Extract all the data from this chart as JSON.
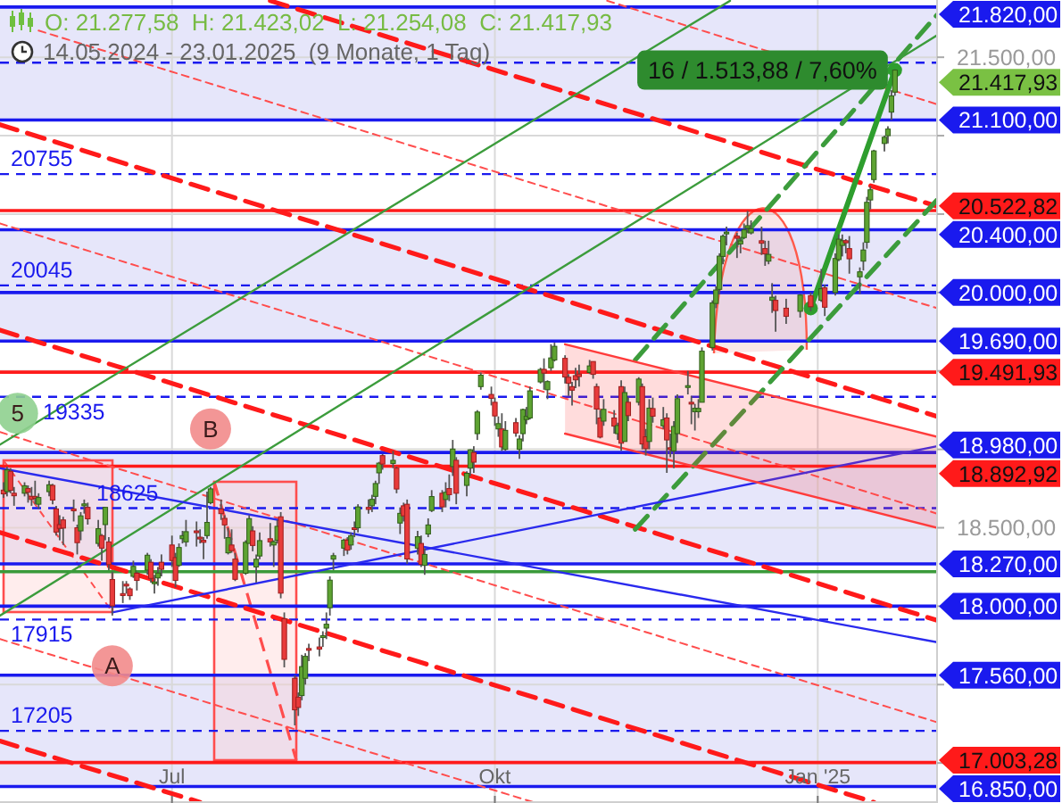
{
  "chart_data": {
    "type": "candlestick",
    "title": "O: 21.277,58  H: 21.423,02  L: 21.254,08  C: 21.417,93",
    "subtitle": "14.05.2024 - 23.01.2025  (9 Monate, 1 Tag)",
    "x": [
      "2024-05-14",
      "2024-05-15",
      "2024-05-16",
      "2024-05-17",
      "2024-05-20",
      "2024-05-21",
      "2024-05-22",
      "2024-05-23",
      "2024-05-24",
      "2024-05-27",
      "2024-05-28",
      "2024-05-29",
      "2024-05-30",
      "2024-05-31",
      "2024-06-03",
      "2024-06-04",
      "2024-06-05",
      "2024-06-06",
      "2024-06-07",
      "2024-06-10",
      "2024-06-11",
      "2024-06-12",
      "2024-06-13",
      "2024-06-14",
      "2024-06-17",
      "2024-06-18",
      "2024-06-19",
      "2024-06-20",
      "2024-06-21",
      "2024-06-24",
      "2024-06-25",
      "2024-06-26",
      "2024-06-27",
      "2024-06-28",
      "2024-07-01",
      "2024-07-02",
      "2024-07-03",
      "2024-07-04",
      "2024-07-05",
      "2024-07-08",
      "2024-07-09",
      "2024-07-10",
      "2024-07-11",
      "2024-07-12",
      "2024-07-15",
      "2024-07-16",
      "2024-07-17",
      "2024-07-18",
      "2024-07-19",
      "2024-07-22",
      "2024-07-23",
      "2024-07-24",
      "2024-07-25",
      "2024-07-26",
      "2024-07-29",
      "2024-07-30",
      "2024-07-31",
      "2024-08-01",
      "2024-08-02",
      "2024-08-05",
      "2024-08-06",
      "2024-08-07",
      "2024-08-08",
      "2024-08-09",
      "2024-08-12",
      "2024-08-13",
      "2024-08-14",
      "2024-08-15",
      "2024-08-16",
      "2024-08-19",
      "2024-08-20",
      "2024-08-21",
      "2024-08-22",
      "2024-08-23",
      "2024-08-26",
      "2024-08-27",
      "2024-08-28",
      "2024-08-29",
      "2024-08-30",
      "2024-09-02",
      "2024-09-03",
      "2024-09-04",
      "2024-09-05",
      "2024-09-06",
      "2024-09-09",
      "2024-09-10",
      "2024-09-11",
      "2024-09-12",
      "2024-09-13",
      "2024-09-16",
      "2024-09-17",
      "2024-09-18",
      "2024-09-19",
      "2024-09-20",
      "2024-09-23",
      "2024-09-24",
      "2024-09-25",
      "2024-09-26",
      "2024-09-27",
      "2024-09-30",
      "2024-10-01",
      "2024-10-02",
      "2024-10-03",
      "2024-10-04",
      "2024-10-07",
      "2024-10-08",
      "2024-10-09",
      "2024-10-10",
      "2024-10-11",
      "2024-10-14",
      "2024-10-15",
      "2024-10-16",
      "2024-10-17",
      "2024-10-18",
      "2024-10-21",
      "2024-10-22",
      "2024-10-23",
      "2024-10-24",
      "2024-10-25",
      "2024-10-28",
      "2024-10-29",
      "2024-10-30",
      "2024-10-31",
      "2024-11-01",
      "2024-11-04",
      "2024-11-05",
      "2024-11-06",
      "2024-11-07",
      "2024-11-08",
      "2024-11-11",
      "2024-11-12",
      "2024-11-13",
      "2024-11-14",
      "2024-11-15",
      "2024-11-18",
      "2024-11-19",
      "2024-11-20",
      "2024-11-21",
      "2024-11-22",
      "2024-11-25",
      "2024-11-26",
      "2024-11-27",
      "2024-11-28",
      "2024-11-29",
      "2024-12-02",
      "2024-12-03",
      "2024-12-04",
      "2024-12-05",
      "2024-12-06",
      "2024-12-09",
      "2024-12-10",
      "2024-12-11",
      "2024-12-12",
      "2024-12-13",
      "2024-12-16",
      "2024-12-17",
      "2024-12-18",
      "2024-12-19",
      "2024-12-20",
      "2024-12-23",
      "2024-12-27",
      "2024-12-30",
      "2025-01-02",
      "2025-01-03",
      "2025-01-06",
      "2025-01-07",
      "2025-01-08",
      "2025-01-09",
      "2025-01-10",
      "2025-01-13",
      "2025-01-14",
      "2025-01-15",
      "2025-01-16",
      "2025-01-17",
      "2025-01-20",
      "2025-01-21",
      "2025-01-22",
      "2025-01-23"
    ],
    "ohlc": [
      [
        18740,
        18790,
        18690,
        18716
      ],
      [
        18730,
        18890,
        18700,
        18869
      ],
      [
        18860,
        18880,
        18720,
        18738
      ],
      [
        18720,
        18760,
        18640,
        18704
      ],
      [
        18720,
        18790,
        18700,
        18768
      ],
      [
        18750,
        18770,
        18660,
        18726
      ],
      [
        18700,
        18760,
        18640,
        18680
      ],
      [
        18700,
        18800,
        18650,
        18691
      ],
      [
        18650,
        18720,
        18620,
        18693
      ],
      [
        18730,
        18800,
        18700,
        18774
      ],
      [
        18770,
        18780,
        18650,
        18677
      ],
      [
        18620,
        18640,
        18450,
        18473
      ],
      [
        18520,
        18580,
        18420,
        18496
      ],
      [
        18550,
        18570,
        18390,
        18498
      ],
      [
        18620,
        18680,
        18540,
        18608
      ],
      [
        18500,
        18520,
        18330,
        18405
      ],
      [
        18480,
        18600,
        18420,
        18576
      ],
      [
        18640,
        18680,
        18590,
        18652
      ],
      [
        18630,
        18660,
        18520,
        18557
      ],
      [
        18400,
        18550,
        18380,
        18494
      ],
      [
        18450,
        18460,
        18290,
        18370
      ],
      [
        18520,
        18630,
        18420,
        18630
      ],
      [
        18410,
        18440,
        18230,
        18265
      ],
      [
        18170,
        18220,
        17940,
        18002
      ],
      [
        18080,
        18160,
        18020,
        18068
      ],
      [
        18140,
        18160,
        18080,
        18131
      ],
      [
        18110,
        18120,
        18040,
        18067
      ],
      [
        18190,
        18290,
        18180,
        18254
      ],
      [
        18210,
        18220,
        18100,
        18164
      ],
      [
        18230,
        18340,
        18200,
        18325
      ],
      [
        18280,
        18300,
        18150,
        18177
      ],
      [
        18150,
        18200,
        18080,
        18155
      ],
      [
        18180,
        18250,
        18130,
        18211
      ],
      [
        18280,
        18330,
        18190,
        18235
      ],
      [
        18390,
        18450,
        18250,
        18291
      ],
      [
        18310,
        18340,
        18120,
        18164
      ],
      [
        18260,
        18400,
        18250,
        18374
      ],
      [
        18430,
        18480,
        18400,
        18450
      ],
      [
        18410,
        18550,
        18380,
        18475
      ],
      [
        18480,
        18540,
        18380,
        18472
      ],
      [
        18440,
        18490,
        18400,
        18429
      ],
      [
        18420,
        18440,
        18300,
        18407
      ],
      [
        18450,
        18730,
        18430,
        18534
      ],
      [
        18660,
        18760,
        18650,
        18748
      ],
      [
        18620,
        18680,
        18550,
        18590
      ],
      [
        18560,
        18580,
        18430,
        18518
      ],
      [
        18340,
        18500,
        18330,
        18437
      ],
      [
        18390,
        18490,
        18340,
        18354
      ],
      [
        18300,
        18340,
        18160,
        18171
      ],
      [
        18210,
        18420,
        18200,
        18407
      ],
      [
        18400,
        18580,
        18400,
        18558
      ],
      [
        18480,
        18510,
        18350,
        18387
      ],
      [
        18250,
        18330,
        18150,
        18299
      ],
      [
        18320,
        18470,
        18300,
        18418
      ],
      [
        18430,
        18530,
        18380,
        18410
      ],
      [
        18390,
        18420,
        18250,
        18411
      ],
      [
        18420,
        18550,
        18400,
        18509
      ],
      [
        18570,
        18600,
        18050,
        18083
      ],
      [
        17920,
        17960,
        17610,
        17661
      ],
      [
        17540,
        17560,
        17240,
        17339
      ],
      [
        17420,
        17450,
        17300,
        17354
      ],
      [
        17430,
        17690,
        17400,
        17615
      ],
      [
        17540,
        17700,
        17500,
        17680
      ],
      [
        17730,
        17760,
        17650,
        17722
      ],
      [
        17740,
        17800,
        17680,
        17726
      ],
      [
        17800,
        17840,
        17740,
        17812
      ],
      [
        17860,
        17960,
        17790,
        17885
      ],
      [
        17990,
        18190,
        17940,
        18166
      ],
      [
        18300,
        18340,
        18230,
        18322
      ],
      [
        18370,
        18430,
        18320,
        18421
      ],
      [
        18420,
        18440,
        18330,
        18357
      ],
      [
        18390,
        18470,
        18360,
        18449
      ],
      [
        18500,
        18540,
        18440,
        18493
      ],
      [
        18500,
        18650,
        18470,
        18633
      ],
      [
        18630,
        18680,
        18590,
        18617
      ],
      [
        18640,
        18710,
        18600,
        18681
      ],
      [
        18700,
        18800,
        18650,
        18782
      ],
      [
        18850,
        18920,
        18780,
        18912
      ],
      [
        18960,
        18970,
        18870,
        18906
      ],
      [
        18910,
        18990,
        18880,
        18930
      ],
      [
        18880,
        18890,
        18720,
        18747
      ],
      [
        18530,
        18630,
        18460,
        18592
      ],
      [
        18640,
        18660,
        18540,
        18576
      ],
      [
        18650,
        18680,
        18270,
        18301
      ],
      [
        18370,
        18480,
        18330,
        18443
      ],
      [
        18400,
        18450,
        18250,
        18266
      ],
      [
        18260,
        18370,
        18200,
        18330
      ],
      [
        18460,
        18560,
        18440,
        18518
      ],
      [
        18610,
        18740,
        18600,
        18699
      ],
      [
        18720,
        18740,
        18600,
        18633
      ],
      [
        18680,
        18790,
        18630,
        18726
      ],
      [
        18750,
        18840,
        18670,
        18711
      ],
      [
        18890,
        19060,
        18830,
        19002
      ],
      [
        18930,
        18950,
        18650,
        18720
      ],
      [
        18770,
        18860,
        18700,
        18847
      ],
      [
        18880,
        19000,
        18830,
        18997
      ],
      [
        18980,
        19020,
        18850,
        18918
      ],
      [
        19100,
        19250,
        19060,
        19238
      ],
      [
        19400,
        19490,
        19380,
        19473
      ],
      [
        19350,
        19400,
        19280,
        19325
      ],
      [
        19300,
        19330,
        19150,
        19213
      ],
      [
        19130,
        19210,
        19080,
        19164
      ],
      [
        19130,
        19230,
        18990,
        19015
      ],
      [
        19000,
        19180,
        18990,
        19121
      ],
      [
        19170,
        19200,
        19080,
        19104
      ],
      [
        19000,
        19090,
        18940,
        19066
      ],
      [
        19100,
        19260,
        19050,
        19254
      ],
      [
        19190,
        19270,
        19160,
        19210
      ],
      [
        19200,
        19400,
        19190,
        19373
      ],
      [
        19430,
        19520,
        19420,
        19509
      ],
      [
        19510,
        19580,
        19380,
        19486
      ],
      [
        19380,
        19440,
        19320,
        19432
      ],
      [
        19520,
        19670,
        19500,
        19583
      ],
      [
        19570,
        19680,
        19560,
        19657
      ],
      [
        19580,
        19600,
        19420,
        19461
      ],
      [
        19460,
        19480,
        19340,
        19421
      ],
      [
        19400,
        19430,
        19280,
        19377
      ],
      [
        19470,
        19520,
        19390,
        19443
      ],
      [
        19480,
        19540,
        19400,
        19464
      ],
      [
        19490,
        19570,
        19480,
        19532
      ],
      [
        19560,
        19560,
        19450,
        19478
      ],
      [
        19400,
        19420,
        19160,
        19257
      ],
      [
        19200,
        19250,
        19070,
        19078
      ],
      [
        19180,
        19320,
        19150,
        19255
      ],
      [
        19200,
        19250,
        19100,
        19148
      ],
      [
        19100,
        19170,
        19060,
        19152
      ],
      [
        19400,
        19440,
        18990,
        19039
      ],
      [
        19050,
        19400,
        19050,
        19362
      ],
      [
        19300,
        19330,
        19180,
        19215
      ],
      [
        19300,
        19460,
        19280,
        19448
      ],
      [
        19400,
        19420,
        19000,
        19034
      ],
      [
        19080,
        19130,
        18960,
        19004
      ],
      [
        19050,
        19320,
        19000,
        19263
      ],
      [
        19260,
        19330,
        19170,
        19211
      ],
      [
        19150,
        19270,
        19130,
        19189
      ],
      [
        19200,
        19230,
        18850,
        19060
      ],
      [
        19010,
        19100,
        18950,
        19004
      ],
      [
        18990,
        19180,
        18880,
        19146
      ],
      [
        19100,
        19350,
        19040,
        19323
      ],
      [
        19400,
        19500,
        19350,
        19406
      ],
      [
        19300,
        19340,
        19160,
        19295
      ],
      [
        19240,
        19290,
        19120,
        19262
      ],
      [
        19240,
        19320,
        19200,
        19261
      ],
      [
        19300,
        19650,
        19300,
        19626
      ],
      [
        19650,
        19950,
        19630,
        19934
      ],
      [
        19930,
        20040,
        19900,
        20016
      ],
      [
        20020,
        20250,
        19990,
        20232
      ],
      [
        20230,
        20370,
        20180,
        20359
      ],
      [
        20380,
        20420,
        20300,
        20385
      ],
      [
        20360,
        20380,
        20220,
        20346
      ],
      [
        20310,
        20350,
        20250,
        20329
      ],
      [
        20350,
        20440,
        20340,
        20399
      ],
      [
        20410,
        20520,
        20380,
        20426
      ],
      [
        20380,
        20460,
        20370,
        20406
      ],
      [
        20330,
        20420,
        20240,
        20314
      ],
      [
        20280,
        20330,
        20170,
        20246
      ],
      [
        20200,
        20330,
        20180,
        20243
      ],
      [
        19950,
        20060,
        19870,
        19970
      ],
      [
        19950,
        19980,
        19750,
        19885
      ],
      [
        19900,
        19960,
        19800,
        19848
      ],
      [
        19880,
        19990,
        19840,
        19984
      ],
      [
        19980,
        20000,
        19880,
        19909
      ],
      [
        19950,
        20150,
        19940,
        20024
      ],
      [
        20030,
        20050,
        19850,
        19906
      ],
      [
        20000,
        20250,
        19980,
        20217
      ],
      [
        20210,
        20370,
        20200,
        20340
      ],
      [
        20300,
        20370,
        20230,
        20330
      ],
      [
        20330,
        20340,
        20250,
        20317
      ],
      [
        20280,
        20360,
        20120,
        20215
      ],
      [
        20100,
        20160,
        19990,
        20132
      ],
      [
        20200,
        20320,
        20140,
        20271
      ],
      [
        20320,
        20610,
        20280,
        20575
      ],
      [
        20590,
        20680,
        20530,
        20655
      ],
      [
        20720,
        20910,
        20700,
        20903
      ],
      [
        20950,
        21000,
        20900,
        20990
      ],
      [
        21000,
        21060,
        20950,
        21042
      ],
      [
        21150,
        21290,
        21100,
        21254
      ],
      [
        21277.58,
        21423.02,
        21254.08,
        21417.93
      ]
    ],
    "xlim": [
      "2024-05-13",
      "2025-02-04"
    ],
    "xticks": [
      {
        "value": "2024-07-01",
        "label": "Jul"
      },
      {
        "value": "2024-10-01",
        "label": "Okt"
      },
      {
        "value": "2025-01-01",
        "label": "Jan '25"
      }
    ],
    "ylim": [
      16745,
      21865
    ],
    "yticks": [
      {
        "value": 17000,
        "label": null
      },
      {
        "value": 17500,
        "label": null
      },
      {
        "value": 18000,
        "label": null
      },
      {
        "value": 18500,
        "label": "18.500,00"
      },
      {
        "value": 19000,
        "label": null
      },
      {
        "value": 19500,
        "label": null
      },
      {
        "value": 20000,
        "label": null
      },
      {
        "value": 20500,
        "label": null
      },
      {
        "value": 21000,
        "label": null
      },
      {
        "value": 21500,
        "label": "21.500,00"
      }
    ],
    "grid": true,
    "bands": [
      {
        "axis": "y",
        "from": 21100,
        "to": 21820,
        "color": "#e6e6fa"
      },
      {
        "axis": "y",
        "from": 19690,
        "to": 20400,
        "color": "#e6e6fa"
      },
      {
        "axis": "y",
        "from": 18270,
        "to": 18980,
        "color": "#e6e6fa"
      },
      {
        "axis": "y",
        "from": 16850,
        "to": 17560,
        "color": "#e6e6fa"
      }
    ],
    "ref_lines": [
      {
        "axis": "y",
        "value": 21820,
        "label": "21.820,00",
        "color": "#1a1aee",
        "line_style": "solid"
      },
      {
        "axis": "y",
        "value": 21100,
        "label": "21.100,00",
        "color": "#1a1aee",
        "line_style": "solid"
      },
      {
        "axis": "y",
        "value": 20522.82,
        "label": "20.522,82",
        "color": "#ff1a1a",
        "line_style": "solid"
      },
      {
        "axis": "y",
        "value": 20400,
        "label": "20.400,00",
        "color": "#1a1aee",
        "line_style": "solid"
      },
      {
        "axis": "y",
        "value": 20000,
        "label": "20.000,00",
        "color": "#1a1aee",
        "line_style": "solid"
      },
      {
        "axis": "y",
        "value": 19690,
        "label": "19.690,00",
        "color": "#1a1aee",
        "line_style": "solid"
      },
      {
        "axis": "y",
        "value": 19491.93,
        "label": "19.491,93",
        "color": "#ff1a1a",
        "line_style": "solid"
      },
      {
        "axis": "y",
        "value": 18980,
        "label": "18.980,00",
        "color": "#1a1aee",
        "line_style": "solid"
      },
      {
        "axis": "y",
        "value": 18892.92,
        "label": "18.892,92",
        "color": "#ff1a1a",
        "line_style": "solid"
      },
      {
        "axis": "y",
        "value": 18270,
        "label": "18.270,00",
        "color": "#1a1aee",
        "line_style": "solid"
      },
      {
        "axis": "y",
        "value": 18220,
        "label": null,
        "color": "#3a9a3a",
        "line_style": "solid"
      },
      {
        "axis": "y",
        "value": 18000,
        "label": "18.000,00",
        "color": "#1a1aee",
        "line_style": "solid"
      },
      {
        "axis": "y",
        "value": 17560,
        "label": "17.560,00",
        "color": "#1a1aee",
        "line_style": "solid"
      },
      {
        "axis": "y",
        "value": 17003.28,
        "label": "17.003,28",
        "color": "#ff1a1a",
        "line_style": "solid"
      },
      {
        "axis": "y",
        "value": 16850,
        "label": "16.850,00",
        "color": "#1a1aee",
        "line_style": "solid"
      },
      {
        "axis": "y",
        "value": 21465,
        "label": null,
        "color": "#1a1aee",
        "line_style": "dashed"
      },
      {
        "axis": "y",
        "value": 20755,
        "label": "20755",
        "color": "#1a1aee",
        "line_style": "dashed"
      },
      {
        "axis": "y",
        "value": 20045,
        "label": "20045",
        "color": "#1a1aee",
        "line_style": "dashed"
      },
      {
        "axis": "y",
        "value": 19335,
        "label": "19335",
        "color": "#1a1aee",
        "line_style": "dashed"
      },
      {
        "axis": "y",
        "value": 18625,
        "label": "18625",
        "color": "#1a1aee",
        "line_style": "dashed"
      },
      {
        "axis": "y",
        "value": 17915,
        "label": "17915",
        "color": "#1a1aee",
        "line_style": "dashed"
      },
      {
        "axis": "y",
        "value": 17205,
        "label": "17205",
        "color": "#1a1aee",
        "line_style": "dashed"
      }
    ],
    "series": [
      {
        "type": "line",
        "color": "#ff1a1a",
        "line_style": "dashed",
        "x": [
          "2024-07-29",
          "2025-02-04"
        ],
        "values": [
          21860,
          20550
        ]
      },
      {
        "type": "line",
        "color": "#ff1a1a",
        "line_style": "dashed",
        "x": [
          "2024-05-13",
          "2025-02-04"
        ],
        "values": [
          21070,
          19210
        ]
      },
      {
        "type": "line",
        "color": "#ff1a1a",
        "line_style": "dashed",
        "x": [
          "2024-05-13",
          "2025-02-04"
        ],
        "values": [
          19760,
          17910
        ]
      },
      {
        "type": "line",
        "color": "#ff1a1a",
        "line_style": "dashed",
        "x": [
          "2024-05-13",
          "2025-01-17"
        ],
        "values": [
          18470,
          16750
        ]
      },
      {
        "type": "line",
        "color": "#ff1a1a",
        "line_style": "dashed",
        "x": [
          "2024-05-13",
          "2024-07-09"
        ],
        "values": [
          17140,
          16750
        ]
      },
      {
        "type": "line",
        "color": "#ff4d4d",
        "line_style": "dotted",
        "x": [
          "2024-11-02",
          "2025-02-04"
        ],
        "values": [
          21860,
          21200
        ]
      },
      {
        "type": "line",
        "color": "#ff4d4d",
        "line_style": "dotted",
        "x": [
          "2024-05-24",
          "2025-02-04"
        ],
        "values": [
          21670,
          19900
        ]
      },
      {
        "type": "line",
        "color": "#ff4d4d",
        "line_style": "dotted",
        "x": [
          "2024-05-13",
          "2025-02-04"
        ],
        "values": [
          20440,
          18590
        ]
      },
      {
        "type": "line",
        "color": "#ff4d4d",
        "line_style": "dotted",
        "x": [
          "2024-05-13",
          "2025-02-04"
        ],
        "values": [
          19110,
          17260
        ]
      },
      {
        "type": "line",
        "color": "#ff4d4d",
        "line_style": "dotted",
        "x": [
          "2024-05-13",
          "2024-10-12"
        ],
        "values": [
          17790,
          16750
        ]
      },
      {
        "type": "line",
        "color": "#3c9c3c",
        "line_style": "solid",
        "x": [
          "2024-05-13",
          "2024-12-07"
        ],
        "values": [
          19030,
          21860
        ]
      },
      {
        "type": "line",
        "color": "#3c9c3c",
        "line_style": "solid",
        "x": [
          "2024-05-13",
          "2025-02-04"
        ],
        "values": [
          17940,
          21640
        ]
      },
      {
        "type": "line",
        "color": "#3c9c3c",
        "line_style": "dashed",
        "x": [
          "2024-11-10",
          "2025-02-04"
        ],
        "values": [
          19570,
          21770
        ]
      },
      {
        "type": "line",
        "color": "#3c9c3c",
        "line_style": "dashed",
        "x": [
          "2024-11-10",
          "2025-02-04"
        ],
        "values": [
          18490,
          20590
        ]
      },
      {
        "type": "line",
        "color": "#2a2aee",
        "line_style": "solid",
        "x": [
          "2024-05-13",
          "2025-02-04"
        ],
        "values": [
          18880,
          17770
        ]
      },
      {
        "type": "line",
        "color": "#2a2aee",
        "line_style": "solid",
        "x": [
          "2024-06-14",
          "2025-02-04"
        ],
        "values": [
          17960,
          19020
        ]
      },
      {
        "type": "line",
        "color": "#ff3b3b",
        "line_style": "solid",
        "x": [
          "2024-10-21",
          "2025-02-04"
        ],
        "values": [
          19670,
          19080
        ],
        "lower": [
          19100,
          18500
        ],
        "upper": [
          19670,
          19080
        ]
      },
      {
        "type": "line",
        "color": "#ff3b3b",
        "line_style": "solid",
        "x": [
          "2024-10-21",
          "2025-02-04"
        ],
        "values": [
          19100,
          18500
        ]
      },
      {
        "type": "line",
        "color": "#2e9e2e",
        "line_style": "solid",
        "marker": "circle",
        "x": [
          "2024-12-30",
          "2025-01-23"
        ],
        "values": [
          19900,
          21417.93
        ]
      }
    ],
    "annotations": [
      {
        "text": "16 / 1.513,88 / 7,60%",
        "x": "2025-01-23",
        "y": 21417.93
      },
      "21.417,93",
      {
        "text": "5",
        "x": "2024-05-18",
        "y": 19230
      },
      {
        "text": "B",
        "x": "2024-07-12",
        "y": 19130
      },
      {
        "text": "A",
        "x": "2024-06-14",
        "y": 17620
      }
    ]
  }
}
